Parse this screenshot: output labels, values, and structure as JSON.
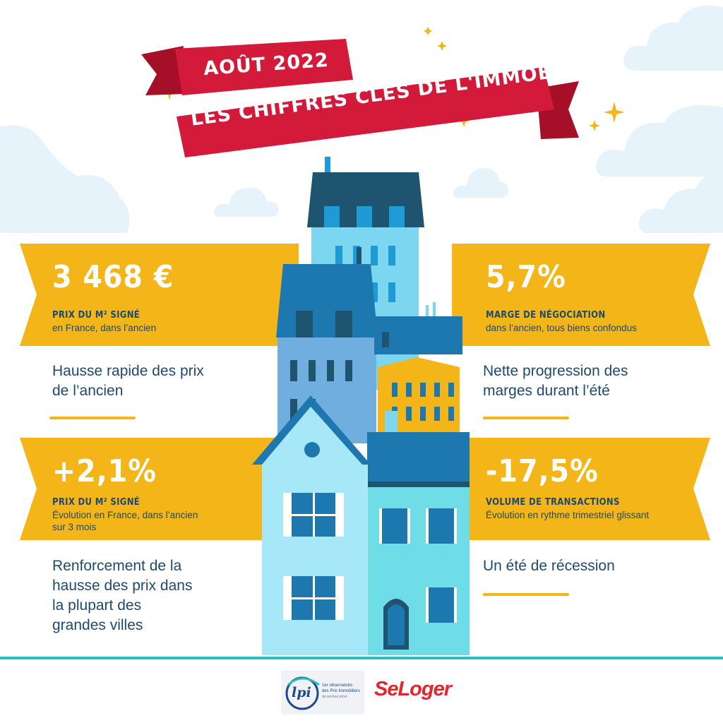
{
  "banner": {
    "date": "AOÛT 2022",
    "title": "LES CHIFFRES CLÉS DE L'IMMOBILIER"
  },
  "stats": {
    "top_left": {
      "value": "3 468 €",
      "label": "PRIX DU M² SIGNÉ",
      "sub": "en France, dans l’ancien",
      "headline_1": "Hausse rapide des prix",
      "headline_2": "de l’ancien"
    },
    "top_right": {
      "value": "5,7%",
      "label": "MARGE DE NÉGOCIATION",
      "sub": "dans l’ancien, tous biens confondus",
      "headline_1": "Nette progression des",
      "headline_2": "marges durant l’été"
    },
    "bottom_left": {
      "value": "+2,1%",
      "label": "PRIX DU M² SIGNÉ",
      "sub_1": "Évolution en France, dans l’ancien",
      "sub_2": "sur 3 mois",
      "headline_1": "Renforcement de la",
      "headline_2": "hausse des prix dans",
      "headline_3": "la plupart des",
      "headline_4": "grandes villes"
    },
    "bottom_right": {
      "value": "-17,5%",
      "label": "VOLUME DE TRANSACTIONS",
      "sub": "Évolution en rythme trimestriel glissant",
      "headline_1": "Un été de récession"
    }
  },
  "logos": {
    "lpi_mark": "lpi",
    "lpi_line_1": "1er observatoire",
    "lpi_line_2": "des Prix Immobiliers",
    "lpi_line_3": "du secteur privé",
    "seloger": "SeLoger"
  },
  "colors": {
    "ribbon_red": "#d41a3a",
    "band_yellow": "#f4b518",
    "text_navy": "#1e4a6e",
    "teal_line": "#2bbfc2"
  }
}
